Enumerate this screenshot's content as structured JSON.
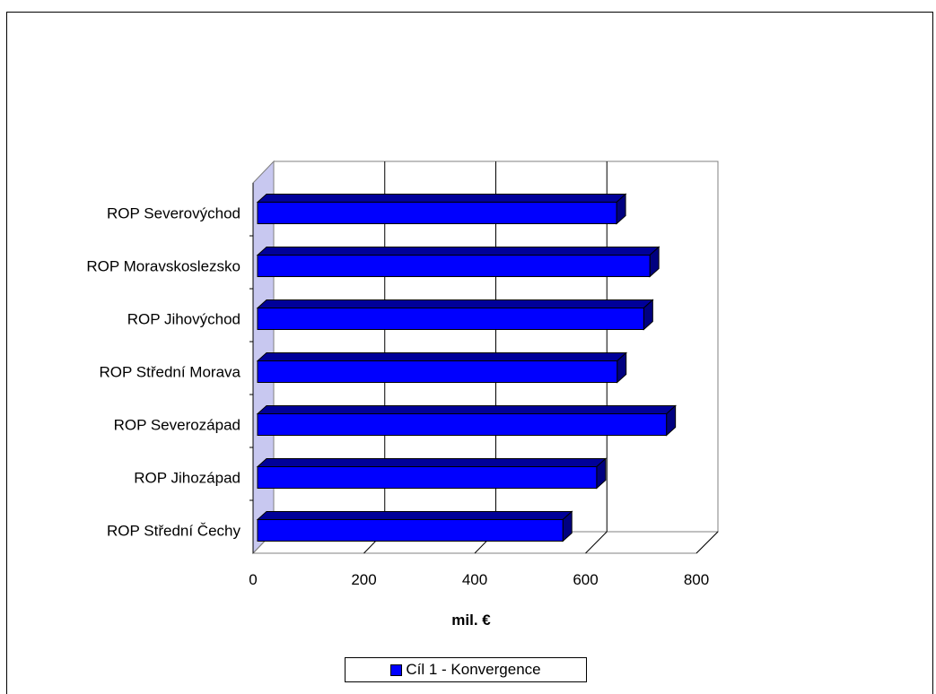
{
  "chart_data": {
    "type": "bar",
    "orientation": "horizontal",
    "style": "3d",
    "categories": [
      "ROP Severovýchod",
      "ROP Moravskoslezsko",
      "ROP Jihovýchod",
      "ROP Střední Morava",
      "ROP Severozápad",
      "ROP Jihozápad",
      "ROP Střední Čechy"
    ],
    "series": [
      {
        "name": "Cíl 1 - Konvergence",
        "color": "#0000FF",
        "values": [
          656,
          716,
          705,
          657,
          746,
          620,
          559
        ]
      }
    ],
    "xlabel": "mil. €",
    "xlim": [
      0,
      800
    ],
    "xticks": [
      "0",
      "200",
      "400",
      "600",
      "800"
    ],
    "grid": true,
    "legend_position": "bottom"
  }
}
